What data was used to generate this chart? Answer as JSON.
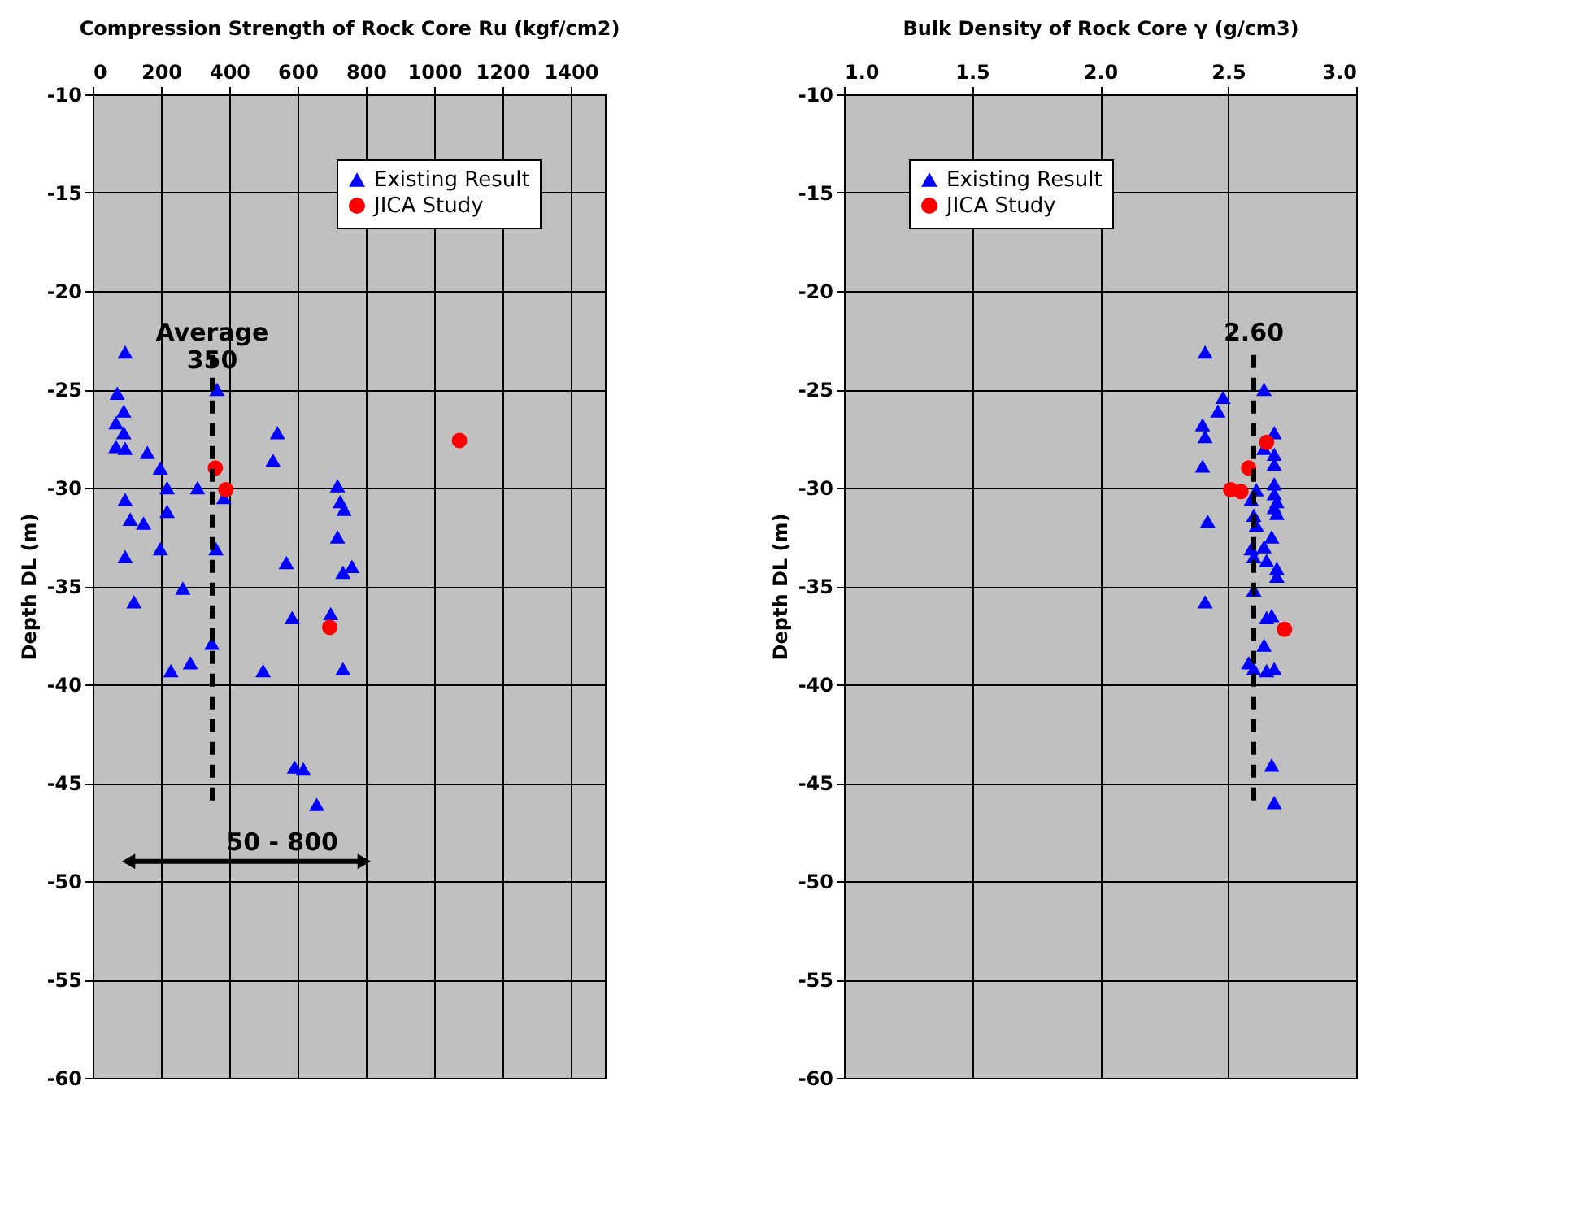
{
  "chart_data": [
    {
      "type": "scatter",
      "xlabel": "Compression Strength of Rock Core Ru (kgf/cm2)",
      "ylabel": "Depth DL (m)",
      "xlim": [
        0,
        1500
      ],
      "xticks": [
        0,
        200,
        400,
        600,
        800,
        1000,
        1200,
        1400
      ],
      "ylim": [
        -60,
        -10
      ],
      "yticks": [
        -10,
        -15,
        -20,
        -25,
        -30,
        -35,
        -40,
        -45,
        -50,
        -55,
        -60
      ],
      "grid": true,
      "legend": "top right",
      "series": [
        {
          "name": "Existing Result",
          "color": "#0000ff",
          "marker": "triangle",
          "x": [
            95,
            364,
            72,
            91,
            68,
            91,
            68,
            95,
            541,
            160,
            198,
            528,
            218,
            307,
            384,
            95,
            717,
            725,
            736,
            110,
            149,
            218,
            717,
            198,
            95,
            361,
            567,
            759,
            733,
            264,
            121,
            584,
            697,
            349,
            229,
            286,
            499,
            733,
            591,
            617,
            656
          ],
          "values": [
            -23.1,
            -25.0,
            -25.2,
            -26.1,
            -26.7,
            -27.2,
            -27.9,
            -28.0,
            -27.2,
            -28.2,
            -29.0,
            -28.6,
            -30.0,
            -30.0,
            -30.5,
            -30.6,
            -29.9,
            -30.7,
            -31.1,
            -31.6,
            -31.8,
            -31.2,
            -32.5,
            -33.1,
            -33.5,
            -33.1,
            -33.8,
            -34.0,
            -34.3,
            -35.1,
            -35.8,
            -36.6,
            -36.4,
            -37.9,
            -39.3,
            -38.9,
            -39.3,
            -39.2,
            -44.2,
            -44.3,
            -46.1
          ]
        },
        {
          "name": "JICA Study",
          "color": "#ff0000",
          "marker": "circle",
          "x": [
            359,
            390,
            694,
            1074
          ],
          "values": [
            -29.0,
            -30.1,
            -37.1,
            -27.6
          ]
        }
      ],
      "ref_lines": [
        {
          "axis": "x",
          "value": 350,
          "label": "Average\n350",
          "line_style": "dashed",
          "color": "#000000"
        }
      ],
      "annotations": [
        "50 - 800"
      ]
    },
    {
      "type": "scatter",
      "xlabel": "Bulk Density of Rock Core γ (g/cm3)",
      "ylabel": "Depth DL (m)",
      "xlim": [
        1.0,
        3.0
      ],
      "xticks": [
        {
          "value": 1.0,
          "label": "1.0"
        },
        1.5,
        {
          "value": 2.0,
          "label": "2.0"
        },
        2.5,
        {
          "value": 3.0,
          "label": "3.0"
        }
      ],
      "ylim": [
        -60,
        -10
      ],
      "yticks": [
        -10,
        -15,
        -20,
        -25,
        -30,
        -35,
        -40,
        -45,
        -50,
        -55,
        -60
      ],
      "grid": true,
      "legend": "top left",
      "series": [
        {
          "name": "Existing Result",
          "color": "#0000ff",
          "marker": "triangle",
          "x": [
            2.41,
            2.64,
            2.48,
            2.46,
            2.4,
            2.41,
            2.68,
            2.64,
            2.68,
            2.68,
            2.4,
            2.61,
            2.68,
            2.68,
            2.69,
            2.68,
            2.59,
            2.69,
            2.6,
            2.61,
            2.42,
            2.67,
            2.59,
            2.64,
            2.6,
            2.65,
            2.69,
            2.69,
            2.6,
            2.41,
            2.67,
            2.65,
            2.64,
            2.58,
            2.6,
            2.65,
            2.68,
            2.67,
            2.68
          ],
          "values": [
            -23.1,
            -25.0,
            -25.4,
            -26.1,
            -26.8,
            -27.4,
            -27.2,
            -28.0,
            -28.3,
            -28.8,
            -28.9,
            -30.1,
            -29.8,
            -30.3,
            -30.7,
            -31.0,
            -30.6,
            -31.3,
            -31.4,
            -31.9,
            -31.7,
            -32.5,
            -33.1,
            -33.0,
            -33.5,
            -33.7,
            -34.1,
            -34.5,
            -35.2,
            -35.8,
            -36.5,
            -36.6,
            -38.0,
            -38.9,
            -39.2,
            -39.3,
            -39.2,
            -44.1,
            -46.0
          ]
        },
        {
          "name": "JICA Study",
          "color": "#ff0000",
          "marker": "circle",
          "x": [
            2.65,
            2.58,
            2.51,
            2.55,
            2.72
          ],
          "values": [
            -27.7,
            -29.0,
            -30.1,
            -30.2,
            -37.2
          ]
        }
      ],
      "ref_lines": [
        {
          "axis": "x",
          "value": 2.6,
          "label": "2.60",
          "line_style": "dashed",
          "color": "#000000"
        }
      ]
    }
  ]
}
